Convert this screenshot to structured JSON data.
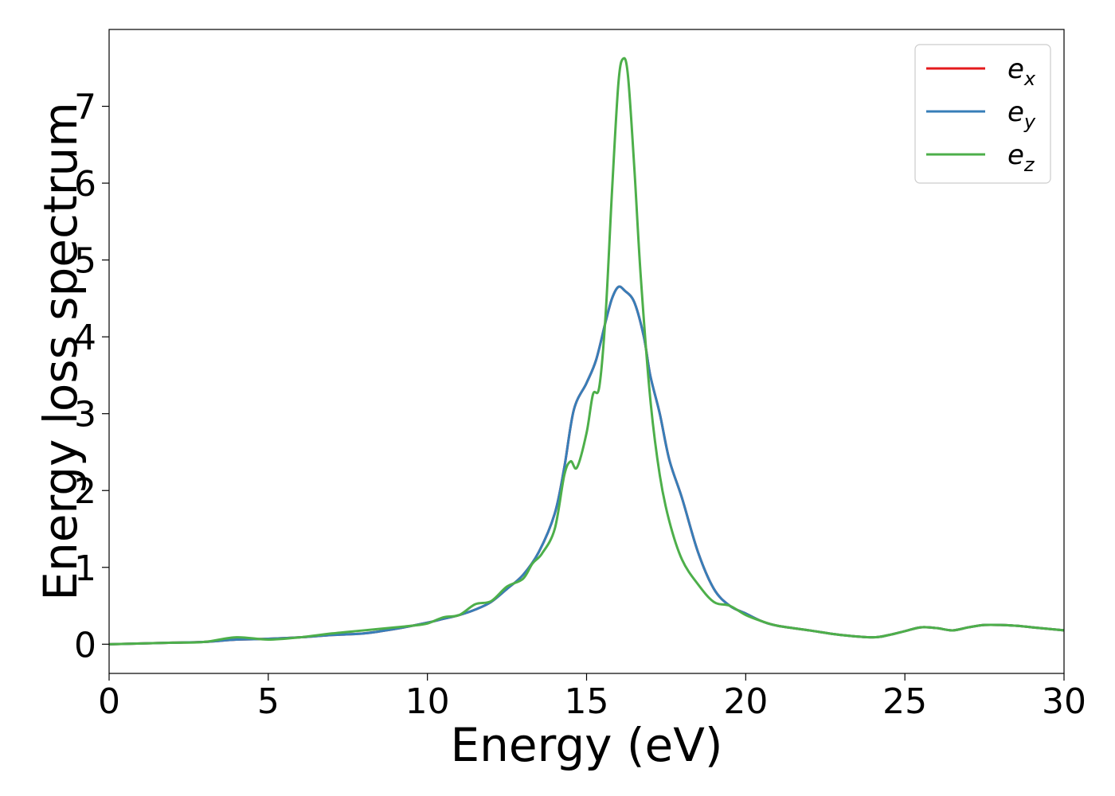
{
  "chart_data": {
    "type": "line",
    "title": "",
    "xlabel": "Energy (eV)",
    "ylabel": "Energy loss spectrum",
    "xlim": [
      0,
      30
    ],
    "ylim": [
      -0.38,
      8.0
    ],
    "xticks": [
      0,
      5,
      10,
      15,
      20,
      25,
      30
    ],
    "yticks": [
      0,
      1,
      2,
      3,
      4,
      5,
      6,
      7
    ],
    "grid": false,
    "legend_position": "top-right",
    "series": [
      {
        "name": "e_x",
        "label_base": "e",
        "label_sub": "x",
        "color": "#e41a1c",
        "x": [
          0,
          1,
          2,
          3,
          4,
          5,
          6,
          7,
          8,
          9,
          10,
          10.5,
          11,
          11.5,
          12,
          12.5,
          13,
          13.5,
          14,
          14.3,
          14.6,
          15,
          15.3,
          15.6,
          15.8,
          16.0,
          16.2,
          16.5,
          16.8,
          17.0,
          17.3,
          17.6,
          18.0,
          18.5,
          19.0,
          19.5,
          20,
          20.5,
          21,
          22,
          23,
          24,
          24.5,
          25,
          25.5,
          26,
          26.5,
          27,
          27.5,
          28,
          28.5,
          29,
          30
        ],
        "y": [
          0.0,
          0.01,
          0.02,
          0.03,
          0.06,
          0.07,
          0.09,
          0.12,
          0.14,
          0.2,
          0.28,
          0.33,
          0.38,
          0.45,
          0.55,
          0.72,
          0.9,
          1.2,
          1.7,
          2.3,
          3.05,
          3.4,
          3.7,
          4.2,
          4.5,
          4.65,
          4.6,
          4.45,
          4.0,
          3.5,
          3.0,
          2.4,
          1.9,
          1.2,
          0.72,
          0.5,
          0.4,
          0.3,
          0.24,
          0.18,
          0.12,
          0.09,
          0.12,
          0.17,
          0.22,
          0.21,
          0.18,
          0.22,
          0.25,
          0.25,
          0.24,
          0.22,
          0.18
        ]
      },
      {
        "name": "e_y",
        "label_base": "e",
        "label_sub": "y",
        "color": "#377eb8",
        "x": [
          0,
          1,
          2,
          3,
          4,
          5,
          6,
          7,
          8,
          9,
          10,
          10.5,
          11,
          11.5,
          12,
          12.5,
          13,
          13.5,
          14,
          14.3,
          14.6,
          15,
          15.3,
          15.6,
          15.8,
          16.0,
          16.2,
          16.5,
          16.8,
          17.0,
          17.3,
          17.6,
          18.0,
          18.5,
          19.0,
          19.5,
          20,
          20.5,
          21,
          22,
          23,
          24,
          24.5,
          25,
          25.5,
          26,
          26.5,
          27,
          27.5,
          28,
          28.5,
          29,
          30
        ],
        "y": [
          0.0,
          0.01,
          0.02,
          0.03,
          0.06,
          0.07,
          0.09,
          0.12,
          0.14,
          0.2,
          0.28,
          0.33,
          0.38,
          0.45,
          0.55,
          0.72,
          0.9,
          1.2,
          1.7,
          2.3,
          3.05,
          3.4,
          3.7,
          4.2,
          4.5,
          4.65,
          4.6,
          4.45,
          4.0,
          3.5,
          3.0,
          2.4,
          1.9,
          1.2,
          0.72,
          0.5,
          0.4,
          0.3,
          0.24,
          0.18,
          0.12,
          0.09,
          0.12,
          0.17,
          0.22,
          0.21,
          0.18,
          0.22,
          0.25,
          0.25,
          0.24,
          0.22,
          0.18
        ]
      },
      {
        "name": "e_z",
        "label_base": "e",
        "label_sub": "z",
        "color": "#4daf4a",
        "x": [
          0,
          1,
          2,
          3,
          4,
          5,
          6,
          7,
          8,
          9,
          9.5,
          10,
          10.5,
          11,
          11.5,
          12,
          12.5,
          13,
          13.3,
          13.6,
          14,
          14.3,
          14.5,
          14.7,
          15,
          15.2,
          15.4,
          15.6,
          15.8,
          16.0,
          16.15,
          16.3,
          16.5,
          16.7,
          17.0,
          17.3,
          17.6,
          18.0,
          18.5,
          19.0,
          19.5,
          20,
          20.5,
          21,
          22,
          23,
          24,
          24.5,
          25,
          25.5,
          26,
          26.5,
          27,
          27.5,
          28,
          28.5,
          29,
          30
        ],
        "y": [
          0.0,
          0.01,
          0.02,
          0.03,
          0.09,
          0.06,
          0.09,
          0.14,
          0.18,
          0.22,
          0.24,
          0.27,
          0.35,
          0.38,
          0.52,
          0.56,
          0.75,
          0.85,
          1.05,
          1.18,
          1.5,
          2.2,
          2.38,
          2.3,
          2.75,
          3.25,
          3.35,
          4.3,
          5.9,
          7.3,
          7.62,
          7.4,
          6.2,
          4.8,
          3.2,
          2.2,
          1.6,
          1.1,
          0.78,
          0.55,
          0.5,
          0.38,
          0.3,
          0.24,
          0.18,
          0.12,
          0.09,
          0.12,
          0.17,
          0.22,
          0.21,
          0.18,
          0.22,
          0.25,
          0.25,
          0.24,
          0.22,
          0.18
        ]
      }
    ]
  }
}
